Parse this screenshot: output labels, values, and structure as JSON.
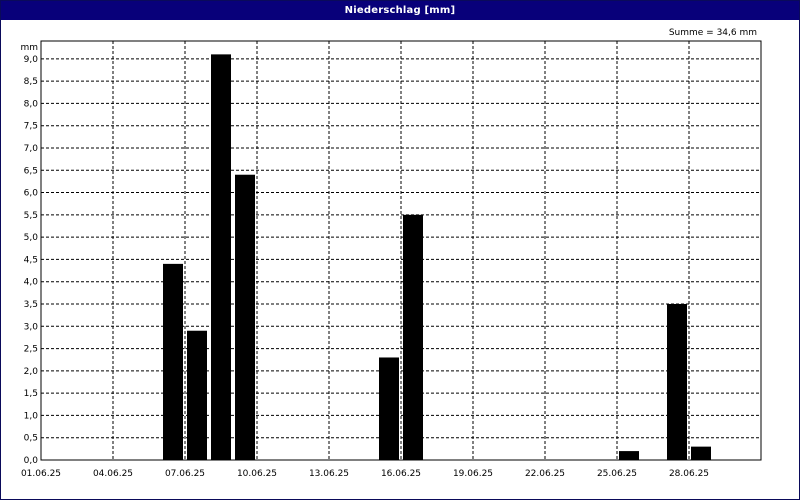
{
  "window": {
    "title": "Niederschlag [mm]"
  },
  "summary_text": "Summe = 34,6 mm",
  "colors": {
    "titlebar": "#08007a",
    "bars": "#000000",
    "grid": "#000000"
  },
  "chart_data": {
    "type": "bar",
    "title": "Niederschlag [mm]",
    "xlabel": "",
    "ylabel": "mm",
    "ylim": [
      0,
      9.4
    ],
    "grid": true,
    "y_ticks": [
      "0,0",
      "0,5",
      "1,0",
      "1,5",
      "2,0",
      "2,5",
      "3,0",
      "3,5",
      "4,0",
      "4,5",
      "5,0",
      "5,5",
      "6,0",
      "6,5",
      "7,0",
      "7,5",
      "8,0",
      "8,5",
      "9,0"
    ],
    "x_ticks": [
      "01.06.25",
      "04.06.25",
      "07.06.25",
      "10.06.25",
      "13.06.25",
      "16.06.25",
      "19.06.25",
      "22.06.25",
      "25.06.25",
      "28.06.25"
    ],
    "categories": [
      "01.06.25",
      "02.06.25",
      "03.06.25",
      "04.06.25",
      "05.06.25",
      "06.06.25",
      "07.06.25",
      "08.06.25",
      "09.06.25",
      "10.06.25",
      "11.06.25",
      "12.06.25",
      "13.06.25",
      "14.06.25",
      "15.06.25",
      "16.06.25",
      "17.06.25",
      "18.06.25",
      "19.06.25",
      "20.06.25",
      "21.06.25",
      "22.06.25",
      "23.06.25",
      "24.06.25",
      "25.06.25",
      "26.06.25",
      "27.06.25",
      "28.06.25",
      "29.06.25",
      "30.06.25"
    ],
    "values": [
      0,
      0,
      0,
      0,
      0,
      4.4,
      2.9,
      9.1,
      6.4,
      0,
      0,
      0,
      0,
      0,
      2.3,
      5.5,
      0,
      0,
      0,
      0,
      0,
      0,
      0,
      0,
      0.2,
      0,
      3.5,
      0.3,
      0,
      0
    ]
  }
}
